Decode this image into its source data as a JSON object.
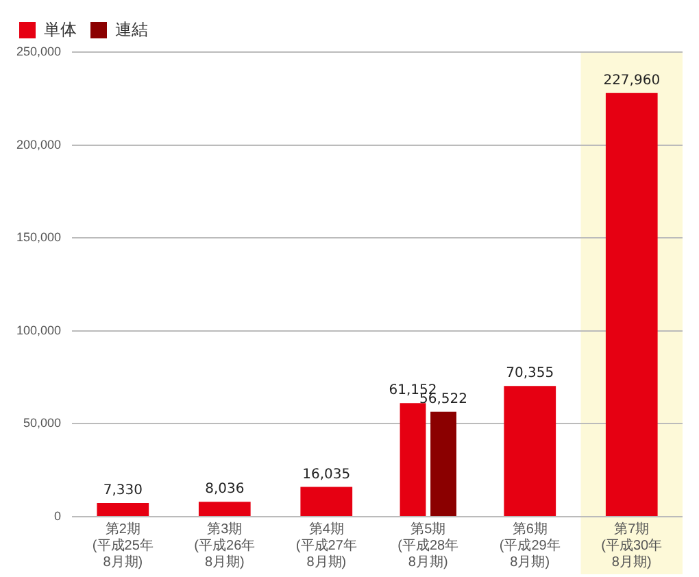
{
  "chart_data": {
    "type": "bar",
    "categories": [
      "第2期\n(平成25年\n8月期)",
      "第3期\n(平成26年\n8月期)",
      "第4期\n(平成27年\n8月期)",
      "第5期\n(平成28年\n8月期)",
      "第6期\n(平成29年\n8月期)",
      "第7期\n(平成30年\n8月期)"
    ],
    "series": [
      {
        "name": "単体",
        "color": "#e60012",
        "values": [
          7330,
          8036,
          16035,
          61152,
          70355,
          227960
        ],
        "value_labels": [
          "7,330",
          "8,036",
          "16,035",
          "61,152",
          "70,355",
          "227,960"
        ]
      },
      {
        "name": "連結",
        "color": "#8b0000",
        "values": [
          null,
          null,
          null,
          56522,
          null,
          null
        ],
        "value_labels": [
          null,
          null,
          null,
          "56,522",
          null,
          null
        ]
      }
    ],
    "ylim": [
      0,
      250000
    ],
    "yticks": [
      0,
      {
        "value": 50000,
        "label": "50,000"
      },
      {
        "value": 100000,
        "label": "100,000"
      },
      {
        "value": 150000,
        "label": "150,000"
      },
      {
        "value": 200000,
        "label": "200,000"
      },
      {
        "value": 250000,
        "label": "250,000"
      }
    ],
    "grid": "y",
    "legend": "top left",
    "bands": [
      {
        "axis": "x",
        "from": "第7期\n(平成30年\n8月期)",
        "to": "第7期\n(平成30年\n8月期)",
        "color": "#fdf9d8"
      }
    ]
  }
}
